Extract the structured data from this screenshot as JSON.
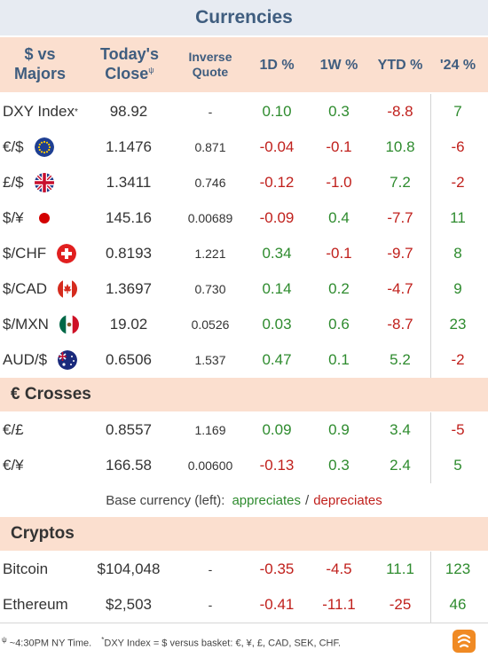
{
  "title": "Currencies",
  "headers": {
    "col1_line1": "$ vs",
    "col1_line2": "Majors",
    "close_line1": "Today's",
    "close_line2": "Close",
    "close_sup": "ψ",
    "inverse_line1": "Inverse",
    "inverse_line2": "Quote",
    "d1": "1D %",
    "w1": "1W %",
    "ytd": "YTD %",
    "y24": "'24 %"
  },
  "majors": [
    {
      "label": "DXY Index",
      "sup": "*",
      "icon": "none",
      "close": "98.92",
      "inverse": "-",
      "d1": "0.10",
      "w1": "0.3",
      "ytd": "-8.8",
      "y24": "7"
    },
    {
      "label": "€/$",
      "icon": "eu-flag-icon",
      "close": "1.1476",
      "inverse": "0.871",
      "d1": "-0.04",
      "w1": "-0.1",
      "ytd": "10.8",
      "y24": "-6"
    },
    {
      "label": "£/$",
      "icon": "uk-flag-icon",
      "close": "1.3411",
      "inverse": "0.746",
      "d1": "-0.12",
      "w1": "-1.0",
      "ytd": "7.2",
      "y24": "-2"
    },
    {
      "label": "$/¥",
      "icon": "japan-flag-icon",
      "close": "145.16",
      "inverse": "0.00689",
      "d1": "-0.09",
      "w1": "0.4",
      "ytd": "-7.7",
      "y24": "11"
    },
    {
      "label": "$/CHF",
      "icon": "swiss-flag-icon",
      "close": "0.8193",
      "inverse": "1.221",
      "d1": "0.34",
      "w1": "-0.1",
      "ytd": "-9.7",
      "y24": "8"
    },
    {
      "label": "$/CAD",
      "icon": "canada-flag-icon",
      "close": "1.3697",
      "inverse": "0.730",
      "d1": "0.14",
      "w1": "0.2",
      "ytd": "-4.7",
      "y24": "9"
    },
    {
      "label": "$/MXN",
      "icon": "mexico-flag-icon",
      "close": "19.02",
      "inverse": "0.0526",
      "d1": "0.03",
      "w1": "0.6",
      "ytd": "-8.7",
      "y24": "23"
    },
    {
      "label": "AUD/$",
      "icon": "australia-flag-icon",
      "close": "0.6506",
      "inverse": "1.537",
      "d1": "0.47",
      "w1": "0.1",
      "ytd": "5.2",
      "y24": "-2"
    }
  ],
  "crosses_title": "€ Crosses",
  "crosses": [
    {
      "label": "€/£",
      "close": "0.8557",
      "inverse": "1.169",
      "d1": "0.09",
      "w1": "0.9",
      "ytd": "3.4",
      "y24": "-5"
    },
    {
      "label": "€/¥",
      "close": "166.58",
      "inverse": "0.00600",
      "d1": "-0.13",
      "w1": "0.3",
      "ytd": "2.4",
      "y24": "5"
    }
  ],
  "legend": {
    "prefix": "Base currency (left):",
    "appreciates": "appreciates",
    "separator": "/",
    "depreciates": "depreciates"
  },
  "cryptos_title": "Cryptos",
  "cryptos": [
    {
      "label": "Bitcoin",
      "close": "$104,048",
      "inverse": "-",
      "d1": "-0.35",
      "w1": "-4.5",
      "ytd": "11.1",
      "y24": "123"
    },
    {
      "label": "Ethereum",
      "close": "$2,503",
      "inverse": "-",
      "d1": "-0.41",
      "w1": "-11.1",
      "ytd": "-25",
      "y24": "46"
    }
  ],
  "footer": {
    "note1_sup": "ψ",
    "note1": "~4:30PM NY Time.",
    "note2_sup": "*",
    "note2": "DXY Index = $ versus basket: €, ¥, £, CAD, SEK, CHF."
  },
  "colors": {
    "positive": "#2e8b2e",
    "negative": "#c0201c",
    "header_bg": "#fbdfcf",
    "title_bg": "#e7ebf2",
    "title_text": "#3f5d7f"
  }
}
